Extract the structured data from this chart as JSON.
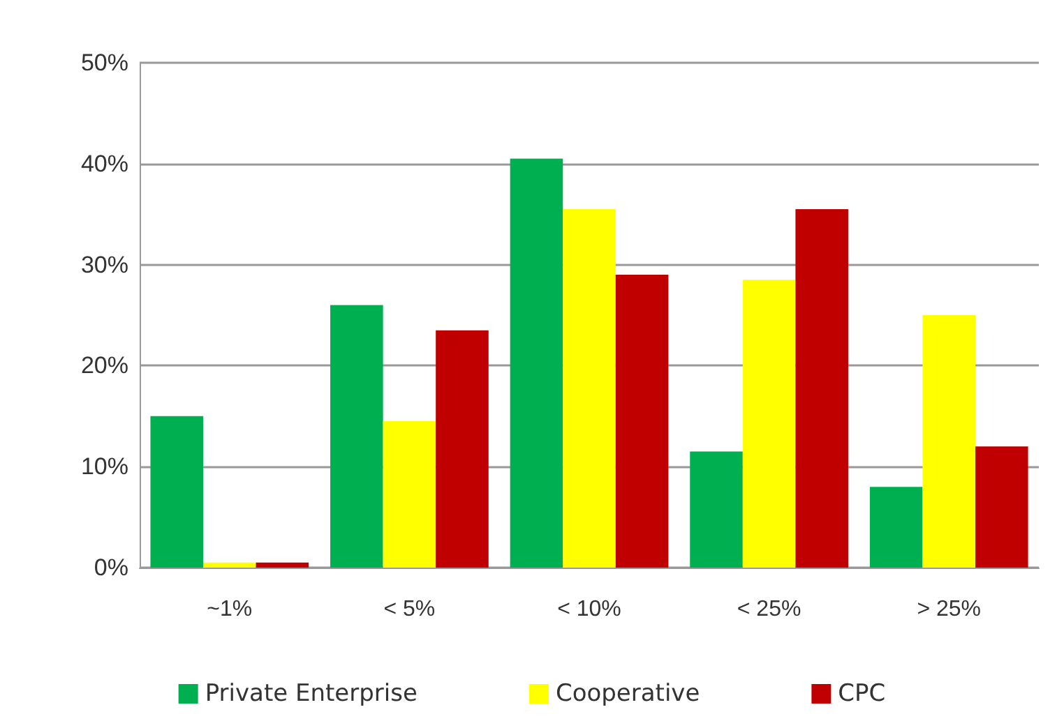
{
  "chart_data": {
    "type": "bar",
    "categories": [
      "~1%",
      "< 5%",
      "< 10%",
      "< 25%",
      "> 25%"
    ],
    "series": [
      {
        "name": "Private Enterprise",
        "color": "#00b050",
        "values": [
          15,
          26,
          40.5,
          11.5,
          8
        ]
      },
      {
        "name": "Cooperative",
        "color": "#ffff00",
        "values": [
          0.5,
          14.5,
          35.5,
          28.5,
          25
        ]
      },
      {
        "name": "CPC",
        "color": "#c00000",
        "values": [
          0.5,
          23.5,
          29,
          35.5,
          12
        ]
      }
    ],
    "ylim": [
      0,
      50
    ],
    "yticks": [
      {
        "value": 0,
        "label": "0%"
      },
      {
        "value": 10,
        "label": "10%"
      },
      {
        "value": 20,
        "label": "20%"
      },
      {
        "value": 30,
        "label": "30%"
      },
      {
        "value": 40,
        "label": "40%"
      },
      {
        "value": 50,
        "label": "50%"
      }
    ],
    "grid": "y",
    "legend": "bottom"
  }
}
